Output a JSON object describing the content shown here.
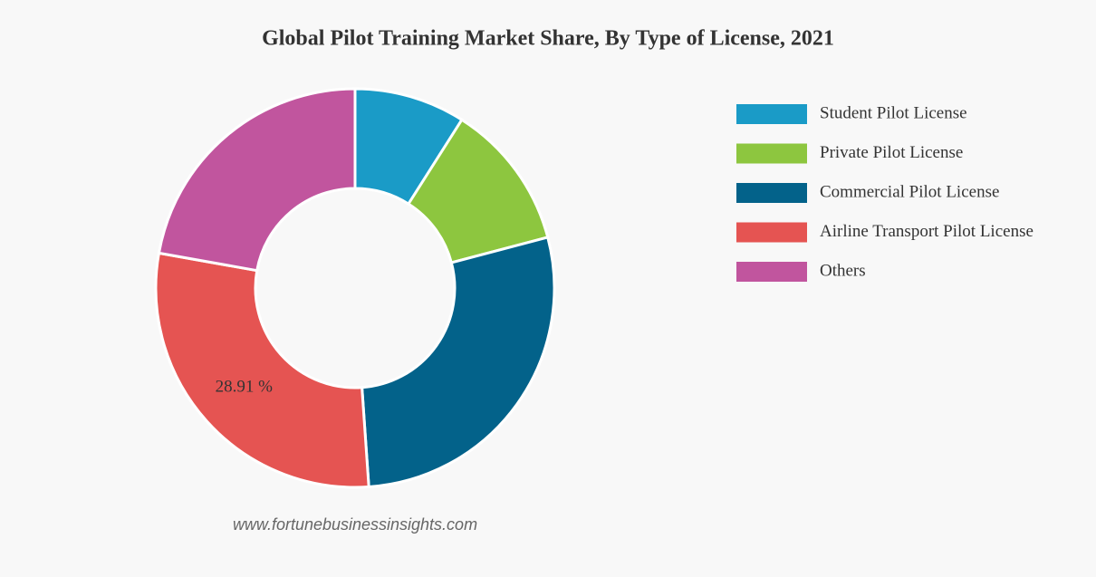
{
  "chart_data": {
    "type": "donut",
    "title": "Global Pilot Training Market Share, By Type of License, 2021",
    "categories": [
      "Student Pilot License",
      "Private Pilot License",
      "Commercial Pilot License",
      "Airline Transport Pilot License",
      "Others"
    ],
    "values": [
      9.0,
      11.9,
      28.0,
      28.91,
      22.19
    ],
    "value_labels": [
      null,
      null,
      null,
      "28.91 %",
      null
    ],
    "colors": [
      "#1a9bc7",
      "#8dc63f",
      "#03628a",
      "#e55452",
      "#c1559e"
    ],
    "legend": "right",
    "source": "www.fortunebusinessinsights.com"
  }
}
